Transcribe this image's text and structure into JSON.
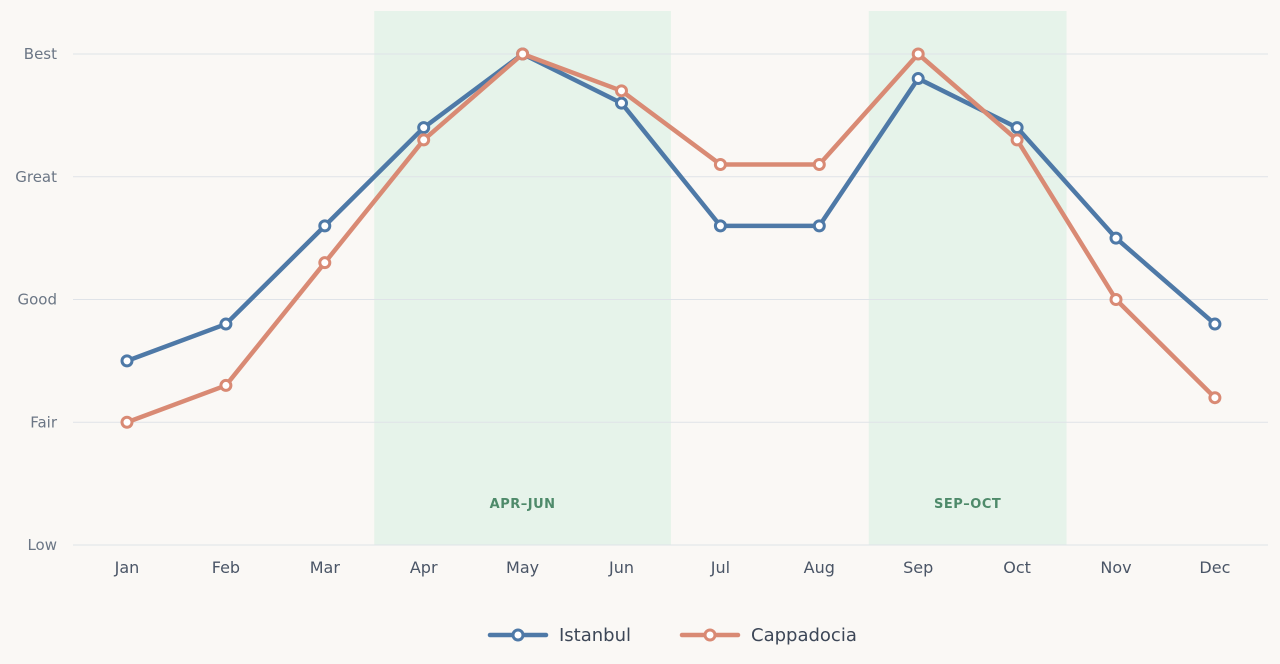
{
  "chart_data": {
    "type": "line",
    "categories": [
      "Jan",
      "Feb",
      "Mar",
      "Apr",
      "May",
      "Jun",
      "Jul",
      "Aug",
      "Sep",
      "Oct",
      "Nov",
      "Dec"
    ],
    "y_levels": [
      "Low",
      "Fair",
      "Good",
      "Great",
      "Best"
    ],
    "ylim": [
      0,
      4
    ],
    "grid": true,
    "legend_position": "bottom-center",
    "highlight_bands": [
      {
        "label": "APR–JUN",
        "from": "Apr",
        "to": "Jun",
        "color": "#e6f3ea"
      },
      {
        "label": "SEP–OCT",
        "from": "Sep",
        "to": "Oct",
        "color": "#e6f3ea"
      }
    ],
    "series": [
      {
        "name": "Istanbul",
        "color": "#4e79a7",
        "values": [
          1.5,
          1.8,
          2.6,
          3.4,
          4.0,
          3.6,
          2.6,
          2.6,
          3.8,
          3.4,
          2.5,
          1.8
        ]
      },
      {
        "name": "Cappadocia",
        "color": "#d98a74",
        "values": [
          1.0,
          1.3,
          2.3,
          3.3,
          4.0,
          3.7,
          3.1,
          3.1,
          4.0,
          3.3,
          2.0,
          1.2
        ]
      }
    ]
  }
}
